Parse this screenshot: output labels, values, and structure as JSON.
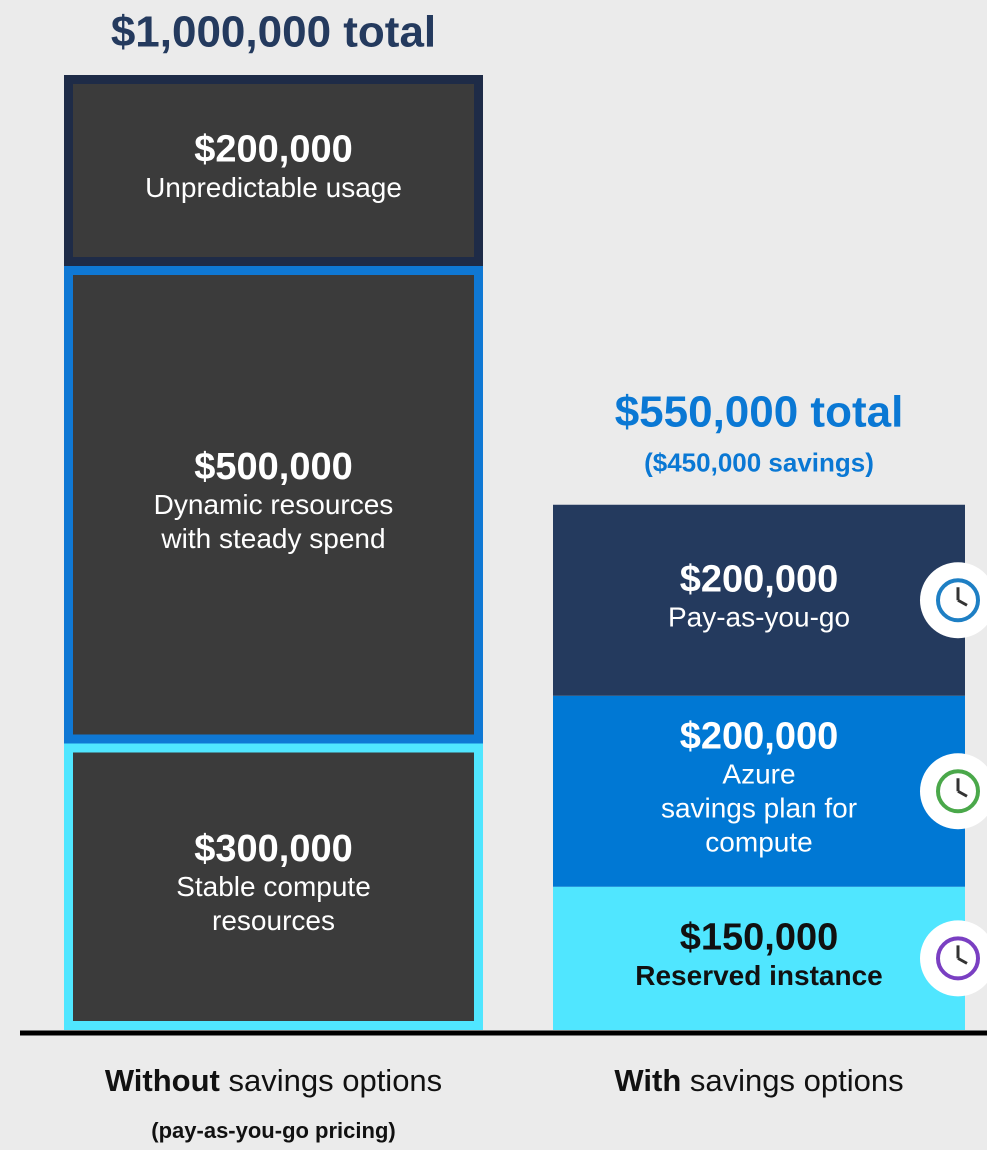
{
  "chart_data": {
    "type": "stacked_bar",
    "categories": [
      "Without savings options",
      "With savings options"
    ],
    "annotations": [
      "(pay-as-you-go pricing)",
      null
    ],
    "bars": [
      {
        "total_label": "$1,000,000 total",
        "subtitle": null,
        "title_color": "#243a5e",
        "style": "outlined",
        "fill": "#3b3b3b",
        "segments": [
          {
            "name_lines": [
              "Stable compute",
              "resources"
            ],
            "value": 300000,
            "value_label": "$300,000",
            "color": "#50e6ff",
            "text_color": "#ffffff"
          },
          {
            "name_lines": [
              "Dynamic resources",
              "with steady spend"
            ],
            "value": 500000,
            "value_label": "$500,000",
            "color": "#0f78d4",
            "text_color": "#ffffff"
          },
          {
            "name_lines": [
              "Unpredictable usage"
            ],
            "value": 200000,
            "value_label": "$200,000",
            "color": "#1e2b47",
            "text_color": "#ffffff"
          }
        ]
      },
      {
        "total_label": "$550,000 total",
        "subtitle": "($450,000 savings)",
        "title_color": "#0a78d4",
        "style": "solid",
        "fill": null,
        "segments": [
          {
            "name_lines": [
              "Reserved instance"
            ],
            "value": 150000,
            "value_label": "$150,000",
            "color": "#50e6ff",
            "text_color": "#111111"
          },
          {
            "name_lines": [
              "Azure",
              "savings plan for",
              "compute"
            ],
            "value": 200000,
            "value_label": "$200,000",
            "color": "#0078d4",
            "text_color": "#ffffff"
          },
          {
            "name_lines": [
              "Pay-as-you-go"
            ],
            "value": 200000,
            "value_label": "$200,000",
            "color": "#243a5e",
            "text_color": "#ffffff"
          }
        ]
      }
    ]
  }
}
